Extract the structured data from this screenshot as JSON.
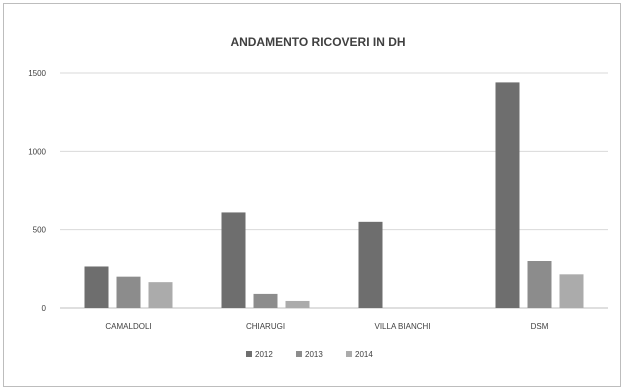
{
  "chart_data": {
    "type": "bar",
    "title": "ANDAMENTO RICOVERI IN DH",
    "xlabel": "",
    "ylabel": "",
    "categories": [
      "CAMALDOLI",
      "CHIARUGI",
      "VILLA BIANCHI",
      "DSM"
    ],
    "series": [
      {
        "name": "2012",
        "values": [
          265,
          610,
          550,
          1440
        ]
      },
      {
        "name": "2013",
        "values": [
          200,
          90,
          0,
          300
        ]
      },
      {
        "name": "2014",
        "values": [
          165,
          45,
          0,
          215
        ]
      }
    ],
    "ylim": [
      0,
      1500
    ],
    "yticks": [
      0,
      500,
      1000,
      1500
    ],
    "grid": true,
    "legend_position": "bottom",
    "colors": {
      "series": [
        "#6e6e6e",
        "#8c8c8c",
        "#ababab"
      ],
      "grid": "#d9d9d9",
      "axis": "#bfbfbf",
      "text": "#404040"
    }
  }
}
